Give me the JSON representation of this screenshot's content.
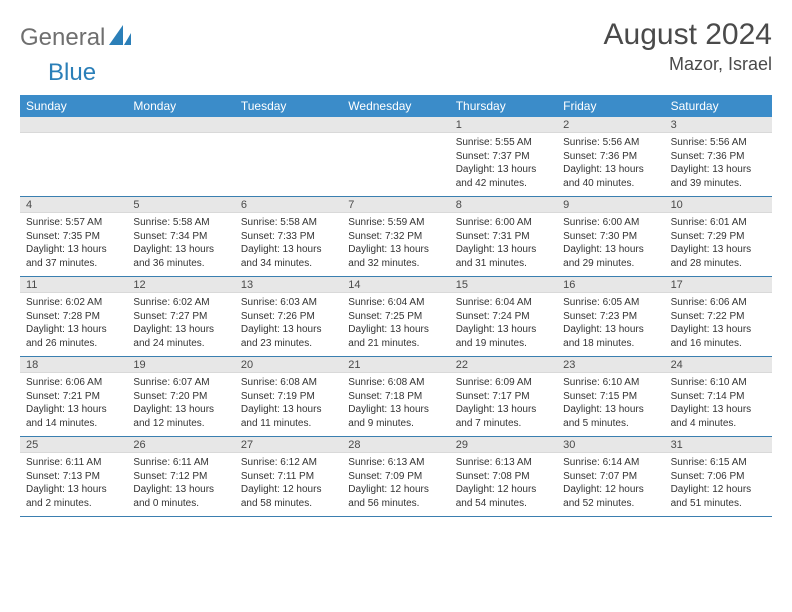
{
  "brand": {
    "part1": "General",
    "part2": "Blue"
  },
  "title": "August 2024",
  "location": "Mazor, Israel",
  "colors": {
    "header_bg": "#3b8cc9",
    "daynum_bg": "#e7e7e7",
    "row_divider": "#3b7fb0",
    "text_dark": "#4a4a4a",
    "brand_gray": "#6f6f6f",
    "brand_blue": "#2b7fb8"
  },
  "days_of_week": [
    "Sunday",
    "Monday",
    "Tuesday",
    "Wednesday",
    "Thursday",
    "Friday",
    "Saturday"
  ],
  "weeks": [
    {
      "nums": [
        "",
        "",
        "",
        "",
        "1",
        "2",
        "3"
      ],
      "details": [
        null,
        null,
        null,
        null,
        {
          "sunrise": "Sunrise: 5:55 AM",
          "sunset": "Sunset: 7:37 PM",
          "day1": "Daylight: 13 hours",
          "day2": "and 42 minutes."
        },
        {
          "sunrise": "Sunrise: 5:56 AM",
          "sunset": "Sunset: 7:36 PM",
          "day1": "Daylight: 13 hours",
          "day2": "and 40 minutes."
        },
        {
          "sunrise": "Sunrise: 5:56 AM",
          "sunset": "Sunset: 7:36 PM",
          "day1": "Daylight: 13 hours",
          "day2": "and 39 minutes."
        }
      ]
    },
    {
      "nums": [
        "4",
        "5",
        "6",
        "7",
        "8",
        "9",
        "10"
      ],
      "details": [
        {
          "sunrise": "Sunrise: 5:57 AM",
          "sunset": "Sunset: 7:35 PM",
          "day1": "Daylight: 13 hours",
          "day2": "and 37 minutes."
        },
        {
          "sunrise": "Sunrise: 5:58 AM",
          "sunset": "Sunset: 7:34 PM",
          "day1": "Daylight: 13 hours",
          "day2": "and 36 minutes."
        },
        {
          "sunrise": "Sunrise: 5:58 AM",
          "sunset": "Sunset: 7:33 PM",
          "day1": "Daylight: 13 hours",
          "day2": "and 34 minutes."
        },
        {
          "sunrise": "Sunrise: 5:59 AM",
          "sunset": "Sunset: 7:32 PM",
          "day1": "Daylight: 13 hours",
          "day2": "and 32 minutes."
        },
        {
          "sunrise": "Sunrise: 6:00 AM",
          "sunset": "Sunset: 7:31 PM",
          "day1": "Daylight: 13 hours",
          "day2": "and 31 minutes."
        },
        {
          "sunrise": "Sunrise: 6:00 AM",
          "sunset": "Sunset: 7:30 PM",
          "day1": "Daylight: 13 hours",
          "day2": "and 29 minutes."
        },
        {
          "sunrise": "Sunrise: 6:01 AM",
          "sunset": "Sunset: 7:29 PM",
          "day1": "Daylight: 13 hours",
          "day2": "and 28 minutes."
        }
      ]
    },
    {
      "nums": [
        "11",
        "12",
        "13",
        "14",
        "15",
        "16",
        "17"
      ],
      "details": [
        {
          "sunrise": "Sunrise: 6:02 AM",
          "sunset": "Sunset: 7:28 PM",
          "day1": "Daylight: 13 hours",
          "day2": "and 26 minutes."
        },
        {
          "sunrise": "Sunrise: 6:02 AM",
          "sunset": "Sunset: 7:27 PM",
          "day1": "Daylight: 13 hours",
          "day2": "and 24 minutes."
        },
        {
          "sunrise": "Sunrise: 6:03 AM",
          "sunset": "Sunset: 7:26 PM",
          "day1": "Daylight: 13 hours",
          "day2": "and 23 minutes."
        },
        {
          "sunrise": "Sunrise: 6:04 AM",
          "sunset": "Sunset: 7:25 PM",
          "day1": "Daylight: 13 hours",
          "day2": "and 21 minutes."
        },
        {
          "sunrise": "Sunrise: 6:04 AM",
          "sunset": "Sunset: 7:24 PM",
          "day1": "Daylight: 13 hours",
          "day2": "and 19 minutes."
        },
        {
          "sunrise": "Sunrise: 6:05 AM",
          "sunset": "Sunset: 7:23 PM",
          "day1": "Daylight: 13 hours",
          "day2": "and 18 minutes."
        },
        {
          "sunrise": "Sunrise: 6:06 AM",
          "sunset": "Sunset: 7:22 PM",
          "day1": "Daylight: 13 hours",
          "day2": "and 16 minutes."
        }
      ]
    },
    {
      "nums": [
        "18",
        "19",
        "20",
        "21",
        "22",
        "23",
        "24"
      ],
      "details": [
        {
          "sunrise": "Sunrise: 6:06 AM",
          "sunset": "Sunset: 7:21 PM",
          "day1": "Daylight: 13 hours",
          "day2": "and 14 minutes."
        },
        {
          "sunrise": "Sunrise: 6:07 AM",
          "sunset": "Sunset: 7:20 PM",
          "day1": "Daylight: 13 hours",
          "day2": "and 12 minutes."
        },
        {
          "sunrise": "Sunrise: 6:08 AM",
          "sunset": "Sunset: 7:19 PM",
          "day1": "Daylight: 13 hours",
          "day2": "and 11 minutes."
        },
        {
          "sunrise": "Sunrise: 6:08 AM",
          "sunset": "Sunset: 7:18 PM",
          "day1": "Daylight: 13 hours",
          "day2": "and 9 minutes."
        },
        {
          "sunrise": "Sunrise: 6:09 AM",
          "sunset": "Sunset: 7:17 PM",
          "day1": "Daylight: 13 hours",
          "day2": "and 7 minutes."
        },
        {
          "sunrise": "Sunrise: 6:10 AM",
          "sunset": "Sunset: 7:15 PM",
          "day1": "Daylight: 13 hours",
          "day2": "and 5 minutes."
        },
        {
          "sunrise": "Sunrise: 6:10 AM",
          "sunset": "Sunset: 7:14 PM",
          "day1": "Daylight: 13 hours",
          "day2": "and 4 minutes."
        }
      ]
    },
    {
      "nums": [
        "25",
        "26",
        "27",
        "28",
        "29",
        "30",
        "31"
      ],
      "details": [
        {
          "sunrise": "Sunrise: 6:11 AM",
          "sunset": "Sunset: 7:13 PM",
          "day1": "Daylight: 13 hours",
          "day2": "and 2 minutes."
        },
        {
          "sunrise": "Sunrise: 6:11 AM",
          "sunset": "Sunset: 7:12 PM",
          "day1": "Daylight: 13 hours",
          "day2": "and 0 minutes."
        },
        {
          "sunrise": "Sunrise: 6:12 AM",
          "sunset": "Sunset: 7:11 PM",
          "day1": "Daylight: 12 hours",
          "day2": "and 58 minutes."
        },
        {
          "sunrise": "Sunrise: 6:13 AM",
          "sunset": "Sunset: 7:09 PM",
          "day1": "Daylight: 12 hours",
          "day2": "and 56 minutes."
        },
        {
          "sunrise": "Sunrise: 6:13 AM",
          "sunset": "Sunset: 7:08 PM",
          "day1": "Daylight: 12 hours",
          "day2": "and 54 minutes."
        },
        {
          "sunrise": "Sunrise: 6:14 AM",
          "sunset": "Sunset: 7:07 PM",
          "day1": "Daylight: 12 hours",
          "day2": "and 52 minutes."
        },
        {
          "sunrise": "Sunrise: 6:15 AM",
          "sunset": "Sunset: 7:06 PM",
          "day1": "Daylight: 12 hours",
          "day2": "and 51 minutes."
        }
      ]
    }
  ]
}
